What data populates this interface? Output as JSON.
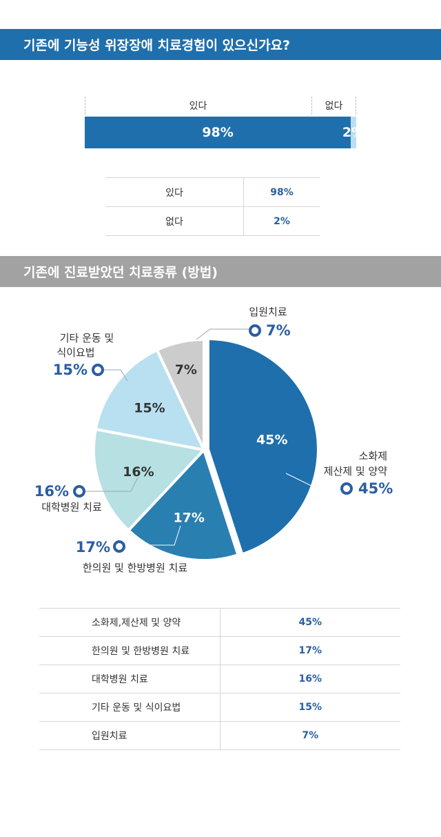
{
  "section1": {
    "title": "기존에 기능성 위장장애 치료경험이 있으신가요?"
  },
  "section2": {
    "title": "기존에 진료받았던 치료종류 (방법)"
  },
  "chart_data": [
    {
      "type": "bar",
      "orientation": "stacked-horizontal",
      "categories": [
        "있다",
        "없다"
      ],
      "values": [
        98,
        2
      ],
      "value_labels": [
        "98%",
        "2%"
      ],
      "colors": [
        "#1f6fad",
        "#b9e0f0"
      ],
      "label_colors": [
        "#ffffff",
        "#ffffff"
      ],
      "table": {
        "rows": [
          {
            "label": "있다",
            "value": "98%"
          },
          {
            "label": "없다",
            "value": "2%"
          }
        ]
      }
    },
    {
      "type": "pie",
      "slices": [
        {
          "label": "소화제 제산제 및 양약",
          "callout_lines": [
            "소화제",
            "제산제 및 양약"
          ],
          "value": 45,
          "pct": "45%",
          "color": "#1f6fad",
          "inner_text_color": "#ffffff"
        },
        {
          "label": "한의원 및 한방병원 치료",
          "callout_lines": [
            "한의원 및 한방병원 치료"
          ],
          "value": 17,
          "pct": "17%",
          "color": "#2a7fb1",
          "inner_text_color": "#ffffff"
        },
        {
          "label": "대학병원 치료",
          "callout_lines": [
            "대학병원 치료"
          ],
          "value": 16,
          "pct": "16%",
          "color": "#b6e0e2",
          "inner_text_color": "#333333"
        },
        {
          "label": "기타 운동 및 식이요법",
          "callout_lines": [
            "기타 운동 및",
            "식이요법"
          ],
          "value": 15,
          "pct": "15%",
          "color": "#b9e0f0",
          "inner_text_color": "#333333"
        },
        {
          "label": "입원치료",
          "callout_lines": [
            "입원치료"
          ],
          "value": 7,
          "pct": "7%",
          "color": "#cccccc",
          "inner_text_color": "#333333"
        }
      ],
      "callout_color": "#2a5ea3",
      "table": {
        "rows": [
          {
            "label": "소화제,제산제 및 양약",
            "value": "45%"
          },
          {
            "label": "한의원 및 한방병원 치료",
            "value": "17%"
          },
          {
            "label": "대학병원 치료",
            "value": "16%"
          },
          {
            "label": "기타 운동 및 식이요법",
            "value": "15%"
          },
          {
            "label": "입원치료",
            "value": "7%"
          }
        ]
      }
    }
  ]
}
